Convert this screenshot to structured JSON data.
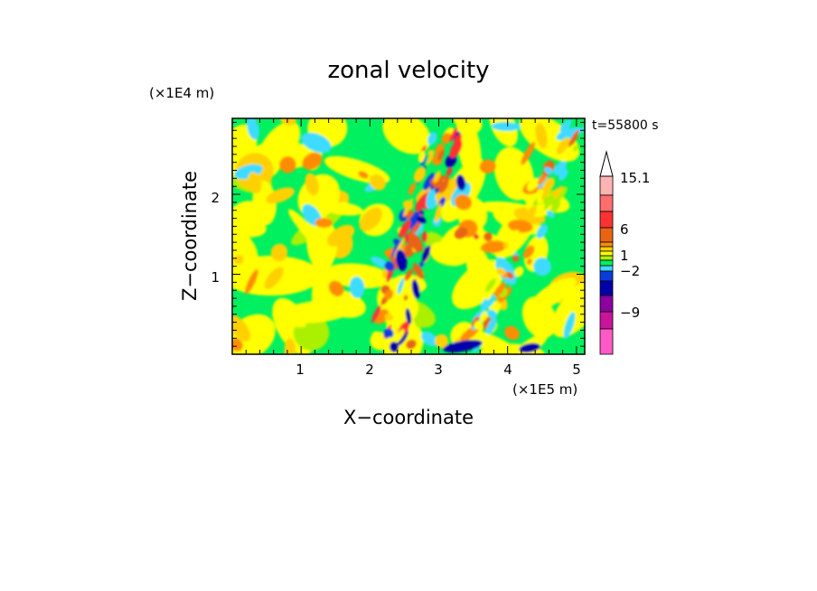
{
  "chart_data": {
    "type": "heatmap",
    "title": "zonal velocity",
    "xlabel": "X−coordinate",
    "ylabel": "Z−coordinate",
    "x_unit": "(×1E5 m)",
    "y_unit": "(×1E4 m)",
    "time_label": "t=55800 s",
    "xlim": [
      0.0,
      5.12
    ],
    "ylim": [
      0.0,
      2.95
    ],
    "x_ticks": [
      "1",
      "2",
      "3",
      "4",
      "5"
    ],
    "y_ticks": [
      "1",
      "2"
    ],
    "colorbar": {
      "labels": [
        "15.1",
        "6",
        "1",
        "−2",
        "−9"
      ],
      "colors": [
        "#ff5ac8",
        "#c8149b",
        "#8c00a0",
        "#0000aa",
        "#0a3cdc",
        "#3cdcff",
        "#00f060",
        "#aaf000",
        "#ffff00",
        "#ffd000",
        "#ff8c00",
        "#e86414",
        "#ff3232",
        "#ff6e6e",
        "#ffb4b4"
      ]
    },
    "description_colors": {
      "background_field": "#00f060",
      "strong_positive": "#e86414",
      "strong_negative": "#0000aa"
    }
  }
}
